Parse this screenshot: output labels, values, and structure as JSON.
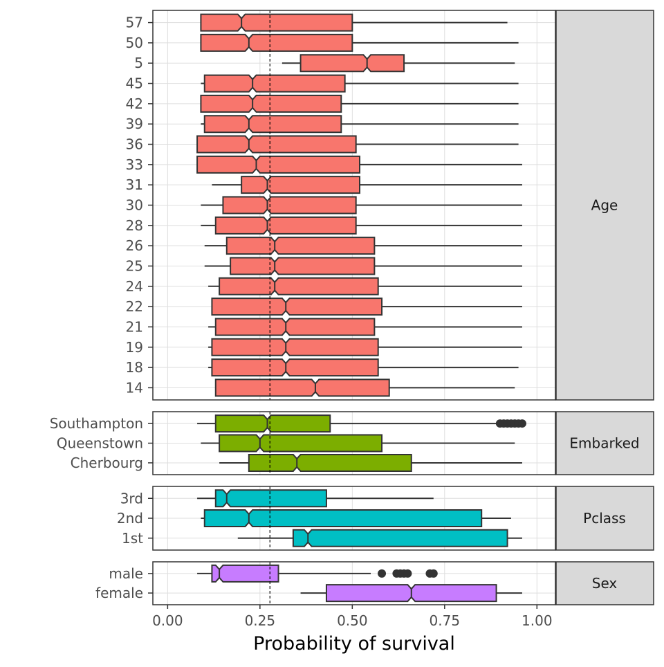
{
  "chart_data": {
    "type": "boxplot",
    "notched": true,
    "xlabel": "Probability of survival",
    "xlim": [
      -0.04,
      1.05
    ],
    "x_ticks": [
      "0.00",
      "0.25",
      "0.50",
      "0.75",
      "1.00"
    ],
    "reference_line": 0.277,
    "grid": true,
    "colors": {
      "Age": "#F8766D",
      "Embarked": "#7CAE00",
      "Pclass": "#00BFC4",
      "Sex": "#C77CFF",
      "strip_fill": "#D9D9D9",
      "box_outline": "#333333",
      "grid": "#DEDEDE"
    },
    "panels": [
      {
        "strip": "Age",
        "groups": [
          {
            "label": "57",
            "whisker_low": 0.09,
            "q1": 0.09,
            "median": 0.2,
            "q3": 0.5,
            "whisker_high": 0.92,
            "notch": [
              0.19,
              0.21
            ],
            "outliers": []
          },
          {
            "label": "50",
            "whisker_low": 0.09,
            "q1": 0.09,
            "median": 0.22,
            "q3": 0.5,
            "whisker_high": 0.95,
            "notch": [
              0.21,
              0.23
            ],
            "outliers": []
          },
          {
            "label": "5",
            "whisker_low": 0.31,
            "q1": 0.36,
            "median": 0.54,
            "q3": 0.64,
            "whisker_high": 0.94,
            "notch": [
              0.53,
              0.55
            ],
            "outliers": []
          },
          {
            "label": "45",
            "whisker_low": 0.09,
            "q1": 0.1,
            "median": 0.23,
            "q3": 0.48,
            "whisker_high": 0.95,
            "notch": [
              0.22,
              0.24
            ],
            "outliers": []
          },
          {
            "label": "42",
            "whisker_low": 0.09,
            "q1": 0.09,
            "median": 0.23,
            "q3": 0.47,
            "whisker_high": 0.95,
            "notch": [
              0.22,
              0.24
            ],
            "outliers": []
          },
          {
            "label": "39",
            "whisker_low": 0.09,
            "q1": 0.1,
            "median": 0.22,
            "q3": 0.47,
            "whisker_high": 0.95,
            "notch": [
              0.21,
              0.23
            ],
            "outliers": []
          },
          {
            "label": "36",
            "whisker_low": 0.08,
            "q1": 0.08,
            "median": 0.22,
            "q3": 0.51,
            "whisker_high": 0.95,
            "notch": [
              0.21,
              0.23
            ],
            "outliers": []
          },
          {
            "label": "33",
            "whisker_low": 0.08,
            "q1": 0.08,
            "median": 0.24,
            "q3": 0.52,
            "whisker_high": 0.96,
            "notch": [
              0.23,
              0.25
            ],
            "outliers": []
          },
          {
            "label": "31",
            "whisker_low": 0.12,
            "q1": 0.2,
            "median": 0.27,
            "q3": 0.52,
            "whisker_high": 0.96,
            "notch": [
              0.26,
              0.28
            ],
            "outliers": []
          },
          {
            "label": "30",
            "whisker_low": 0.09,
            "q1": 0.15,
            "median": 0.27,
            "q3": 0.51,
            "whisker_high": 0.96,
            "notch": [
              0.26,
              0.28
            ],
            "outliers": []
          },
          {
            "label": "28",
            "whisker_low": 0.09,
            "q1": 0.13,
            "median": 0.27,
            "q3": 0.51,
            "whisker_high": 0.96,
            "notch": [
              0.26,
              0.28
            ],
            "outliers": []
          },
          {
            "label": "26",
            "whisker_low": 0.1,
            "q1": 0.16,
            "median": 0.29,
            "q3": 0.56,
            "whisker_high": 0.96,
            "notch": [
              0.28,
              0.3
            ],
            "outliers": []
          },
          {
            "label": "25",
            "whisker_low": 0.1,
            "q1": 0.17,
            "median": 0.29,
            "q3": 0.56,
            "whisker_high": 0.96,
            "notch": [
              0.28,
              0.3
            ],
            "outliers": []
          },
          {
            "label": "24",
            "whisker_low": 0.11,
            "q1": 0.14,
            "median": 0.29,
            "q3": 0.57,
            "whisker_high": 0.96,
            "notch": [
              0.28,
              0.3
            ],
            "outliers": []
          },
          {
            "label": "22",
            "whisker_low": 0.12,
            "q1": 0.12,
            "median": 0.32,
            "q3": 0.58,
            "whisker_high": 0.96,
            "notch": [
              0.31,
              0.33
            ],
            "outliers": []
          },
          {
            "label": "21",
            "whisker_low": 0.11,
            "q1": 0.13,
            "median": 0.32,
            "q3": 0.56,
            "whisker_high": 0.96,
            "notch": [
              0.31,
              0.33
            ],
            "outliers": []
          },
          {
            "label": "19",
            "whisker_low": 0.11,
            "q1": 0.12,
            "median": 0.32,
            "q3": 0.57,
            "whisker_high": 0.96,
            "notch": [
              0.31,
              0.33
            ],
            "outliers": []
          },
          {
            "label": "18",
            "whisker_low": 0.11,
            "q1": 0.12,
            "median": 0.32,
            "q3": 0.57,
            "whisker_high": 0.95,
            "notch": [
              0.31,
              0.33
            ],
            "outliers": []
          },
          {
            "label": "14",
            "whisker_low": 0.13,
            "q1": 0.13,
            "median": 0.4,
            "q3": 0.6,
            "whisker_high": 0.94,
            "notch": [
              0.39,
              0.41
            ],
            "outliers": []
          }
        ]
      },
      {
        "strip": "Embarked",
        "groups": [
          {
            "label": "Southampton",
            "whisker_low": 0.08,
            "q1": 0.13,
            "median": 0.27,
            "q3": 0.44,
            "whisker_high": 0.89,
            "notch": [
              0.26,
              0.28
            ],
            "outliers": [
              0.9,
              0.91,
              0.92,
              0.93,
              0.94,
              0.95,
              0.96
            ]
          },
          {
            "label": "Queenstown",
            "whisker_low": 0.09,
            "q1": 0.14,
            "median": 0.25,
            "q3": 0.58,
            "whisker_high": 0.94,
            "notch": [
              0.24,
              0.26
            ],
            "outliers": []
          },
          {
            "label": "Cherbourg",
            "whisker_low": 0.14,
            "q1": 0.22,
            "median": 0.35,
            "q3": 0.66,
            "whisker_high": 0.96,
            "notch": [
              0.34,
              0.36
            ],
            "outliers": []
          }
        ]
      },
      {
        "strip": "Pclass",
        "groups": [
          {
            "label": "3rd",
            "whisker_low": 0.08,
            "q1": 0.13,
            "median": 0.16,
            "q3": 0.43,
            "whisker_high": 0.72,
            "notch": [
              0.15,
              0.17
            ],
            "outliers": []
          },
          {
            "label": "2nd",
            "whisker_low": 0.09,
            "q1": 0.1,
            "median": 0.22,
            "q3": 0.85,
            "whisker_high": 0.93,
            "notch": [
              0.21,
              0.23
            ],
            "outliers": []
          },
          {
            "label": "1st",
            "whisker_low": 0.19,
            "q1": 0.34,
            "median": 0.38,
            "q3": 0.92,
            "whisker_high": 0.96,
            "notch": [
              0.37,
              0.39
            ],
            "outliers": []
          }
        ]
      },
      {
        "strip": "Sex",
        "groups": [
          {
            "label": "male",
            "whisker_low": 0.08,
            "q1": 0.12,
            "median": 0.14,
            "q3": 0.3,
            "whisker_high": 0.55,
            "notch": [
              0.13,
              0.15
            ],
            "outliers": [
              0.58,
              0.62,
              0.63,
              0.64,
              0.65,
              0.71,
              0.72
            ]
          },
          {
            "label": "female",
            "whisker_low": 0.36,
            "q1": 0.43,
            "median": 0.66,
            "q3": 0.89,
            "whisker_high": 0.96,
            "notch": [
              0.65,
              0.67
            ],
            "outliers": []
          }
        ]
      }
    ]
  }
}
